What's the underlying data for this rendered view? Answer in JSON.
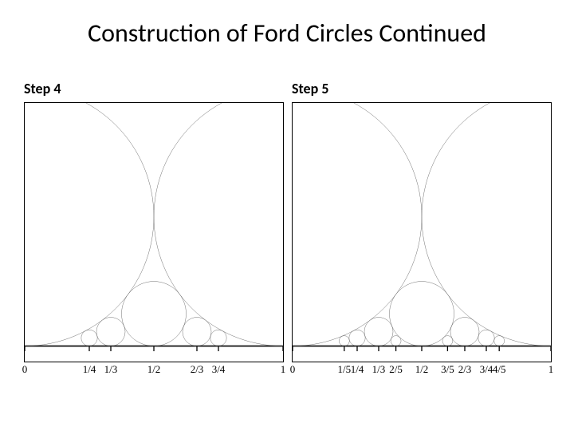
{
  "title": "Construction of Ford Circles Continued",
  "title_fontsize": 32,
  "background_color": "#ffffff",
  "text_color": "#000000",
  "panel_border_color": "#000000",
  "circle_stroke": "#555555",
  "circle_stroke_width": 1.2,
  "baseline_stroke": "#000000",
  "axis_font_family": "Times New Roman, serif",
  "axis_fontsize": 13,
  "panels": [
    {
      "label": "Step 4",
      "type": "ford-circles",
      "xlim": [
        0,
        1
      ],
      "circles": [
        {
          "p": 0,
          "q": 1,
          "x": 0.0,
          "r": 0.5
        },
        {
          "p": 1,
          "q": 1,
          "x": 1.0,
          "r": 0.5
        },
        {
          "p": 1,
          "q": 2,
          "x": 0.5,
          "r": 0.125
        },
        {
          "p": 1,
          "q": 3,
          "x": 0.3333333,
          "r": 0.0555556
        },
        {
          "p": 2,
          "q": 3,
          "x": 0.6666667,
          "r": 0.0555556
        },
        {
          "p": 1,
          "q": 4,
          "x": 0.25,
          "r": 0.03125
        },
        {
          "p": 3,
          "q": 4,
          "x": 0.75,
          "r": 0.03125
        }
      ],
      "ticks": [
        {
          "x": 0.0,
          "label": "0"
        },
        {
          "x": 0.25,
          "label": "1/4"
        },
        {
          "x": 0.3333333,
          "label": "1/3"
        },
        {
          "x": 0.5,
          "label": "1/2"
        },
        {
          "x": 0.6666667,
          "label": "2/3"
        },
        {
          "x": 0.75,
          "label": "3/4"
        },
        {
          "x": 1.0,
          "label": "1"
        }
      ]
    },
    {
      "label": "Step 5",
      "type": "ford-circles",
      "xlim": [
        0,
        1
      ],
      "circles": [
        {
          "p": 0,
          "q": 1,
          "x": 0.0,
          "r": 0.5
        },
        {
          "p": 1,
          "q": 1,
          "x": 1.0,
          "r": 0.5
        },
        {
          "p": 1,
          "q": 2,
          "x": 0.5,
          "r": 0.125
        },
        {
          "p": 1,
          "q": 3,
          "x": 0.3333333,
          "r": 0.0555556
        },
        {
          "p": 2,
          "q": 3,
          "x": 0.6666667,
          "r": 0.0555556
        },
        {
          "p": 1,
          "q": 4,
          "x": 0.25,
          "r": 0.03125
        },
        {
          "p": 3,
          "q": 4,
          "x": 0.75,
          "r": 0.03125
        },
        {
          "p": 1,
          "q": 5,
          "x": 0.2,
          "r": 0.02
        },
        {
          "p": 2,
          "q": 5,
          "x": 0.4,
          "r": 0.02
        },
        {
          "p": 3,
          "q": 5,
          "x": 0.6,
          "r": 0.02
        },
        {
          "p": 4,
          "q": 5,
          "x": 0.8,
          "r": 0.02
        }
      ],
      "ticks": [
        {
          "x": 0.0,
          "label": "0"
        },
        {
          "x": 0.2,
          "label": "1/5"
        },
        {
          "x": 0.25,
          "label": "1/4"
        },
        {
          "x": 0.3333333,
          "label": "1/3"
        },
        {
          "x": 0.4,
          "label": "2/5"
        },
        {
          "x": 0.5,
          "label": "1/2"
        },
        {
          "x": 0.6,
          "label": "3/5"
        },
        {
          "x": 0.6666667,
          "label": "2/3"
        },
        {
          "x": 0.75,
          "label": "3/4"
        },
        {
          "x": 0.8,
          "label": "4/5"
        },
        {
          "x": 1.0,
          "label": "1"
        }
      ]
    }
  ]
}
